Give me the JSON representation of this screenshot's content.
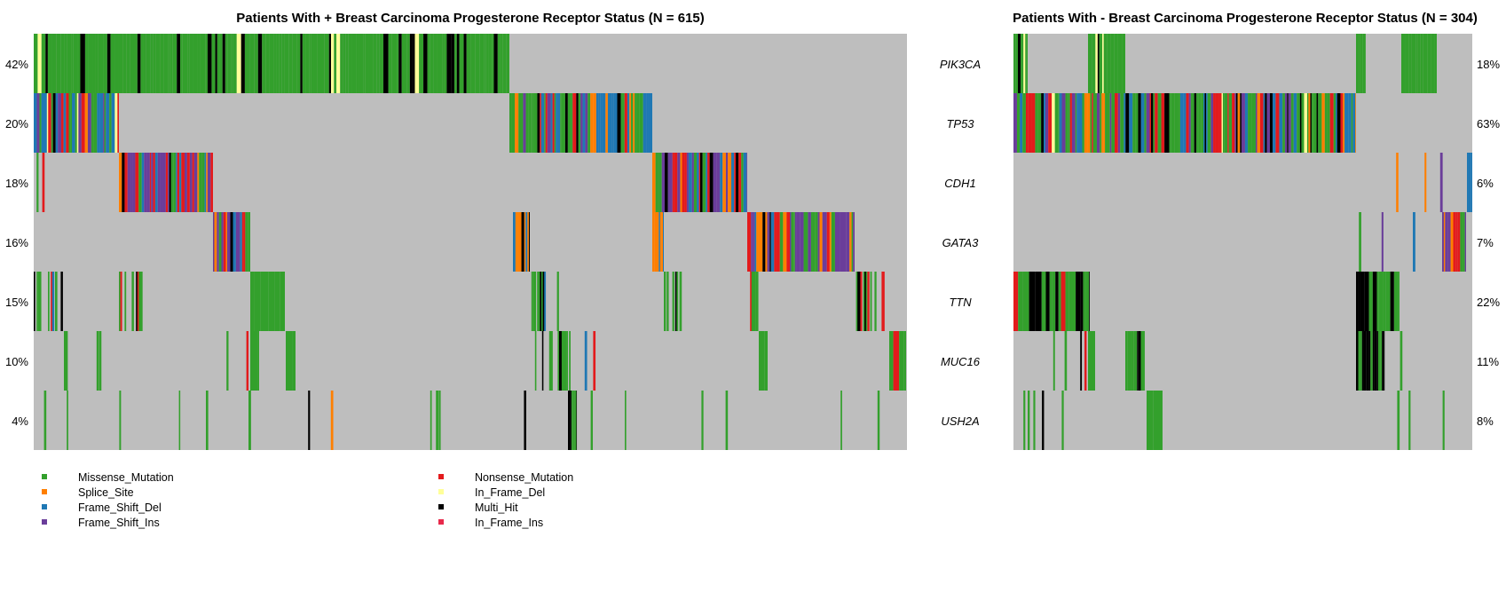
{
  "chart_data": [
    {
      "type": "heatmap",
      "title": "Patients With + Breast Carcinoma Progesterone Receptor Status (N = 615)",
      "rows": [
        {
          "gene": "PIK3CA",
          "pct": "42%"
        },
        {
          "gene": "TP53",
          "pct": "20%"
        },
        {
          "gene": "CDH1",
          "pct": "18%"
        },
        {
          "gene": "GATA3",
          "pct": "16%"
        },
        {
          "gene": "TTN",
          "pct": "15%"
        },
        {
          "gene": "MUC16",
          "pct": "10%"
        },
        {
          "gene": "USH2A",
          "pct": "4%"
        }
      ]
    },
    {
      "type": "heatmap",
      "title": "Patients With - Breast Carcinoma Progesterone Receptor Status (N = 304)",
      "rows": [
        {
          "gene": "PIK3CA",
          "pct": "18%"
        },
        {
          "gene": "TP53",
          "pct": "63%"
        },
        {
          "gene": "CDH1",
          "pct": "6%"
        },
        {
          "gene": "GATA3",
          "pct": "7%"
        },
        {
          "gene": "TTN",
          "pct": "22%"
        },
        {
          "gene": "MUC16",
          "pct": "11%"
        },
        {
          "gene": "USH2A",
          "pct": "8%"
        }
      ]
    }
  ],
  "legend": [
    {
      "label": "Missense_Mutation",
      "color": "#33a02c"
    },
    {
      "label": "Splice_Site",
      "color": "#ff7f00"
    },
    {
      "label": "Frame_Shift_Del",
      "color": "#1f78b4"
    },
    {
      "label": "Frame_Shift_Ins",
      "color": "#6a3d9a"
    },
    {
      "label": "Nonsense_Mutation",
      "color": "#e31a1c"
    },
    {
      "label": "In_Frame_Del",
      "color": "#ffff99"
    },
    {
      "label": "Multi_Hit",
      "color": "#000000"
    },
    {
      "label": "In_Frame_Ins",
      "color": "#e8294b"
    }
  ],
  "background_color": "#bebebe"
}
